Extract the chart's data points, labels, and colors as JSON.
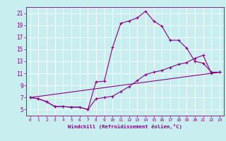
{
  "xlabel": "Windchill (Refroidissement éolien,°C)",
  "bg_color": "#c8eef0",
  "line_color": "#880088",
  "grid_color": "#aadddd",
  "xlim": [
    -0.5,
    23.5
  ],
  "ylim": [
    4.0,
    22.0
  ],
  "xticks": [
    0,
    1,
    2,
    3,
    4,
    5,
    6,
    7,
    8,
    9,
    10,
    11,
    12,
    13,
    14,
    15,
    16,
    17,
    18,
    19,
    20,
    21,
    22,
    23
  ],
  "yticks": [
    5,
    7,
    9,
    11,
    13,
    15,
    17,
    19,
    21
  ],
  "line1_x": [
    0,
    1,
    2,
    3,
    4,
    5,
    6,
    7,
    8,
    9,
    10,
    11,
    12,
    13,
    14,
    15,
    16,
    17,
    18,
    19,
    20,
    21,
    22,
    23
  ],
  "line1_y": [
    7.0,
    6.8,
    6.3,
    5.5,
    5.5,
    5.4,
    5.4,
    5.0,
    9.6,
    9.7,
    15.3,
    19.3,
    19.7,
    20.2,
    21.3,
    19.7,
    18.8,
    16.5,
    16.5,
    15.2,
    13.0,
    12.7,
    11.2,
    11.2
  ],
  "line2_x": [
    0,
    1,
    2,
    3,
    4,
    5,
    6,
    7,
    8,
    9,
    10,
    11,
    12,
    13,
    14,
    15,
    16,
    17,
    18,
    19,
    20,
    21,
    22,
    23
  ],
  "line2_y": [
    7.0,
    6.8,
    6.3,
    5.5,
    5.5,
    5.4,
    5.4,
    5.0,
    6.8,
    7.0,
    7.2,
    8.0,
    8.8,
    9.8,
    10.8,
    11.2,
    11.5,
    12.0,
    12.5,
    12.8,
    13.5,
    14.0,
    11.0,
    11.2
  ],
  "line3_x": [
    0,
    23
  ],
  "line3_y": [
    7.0,
    11.2
  ]
}
